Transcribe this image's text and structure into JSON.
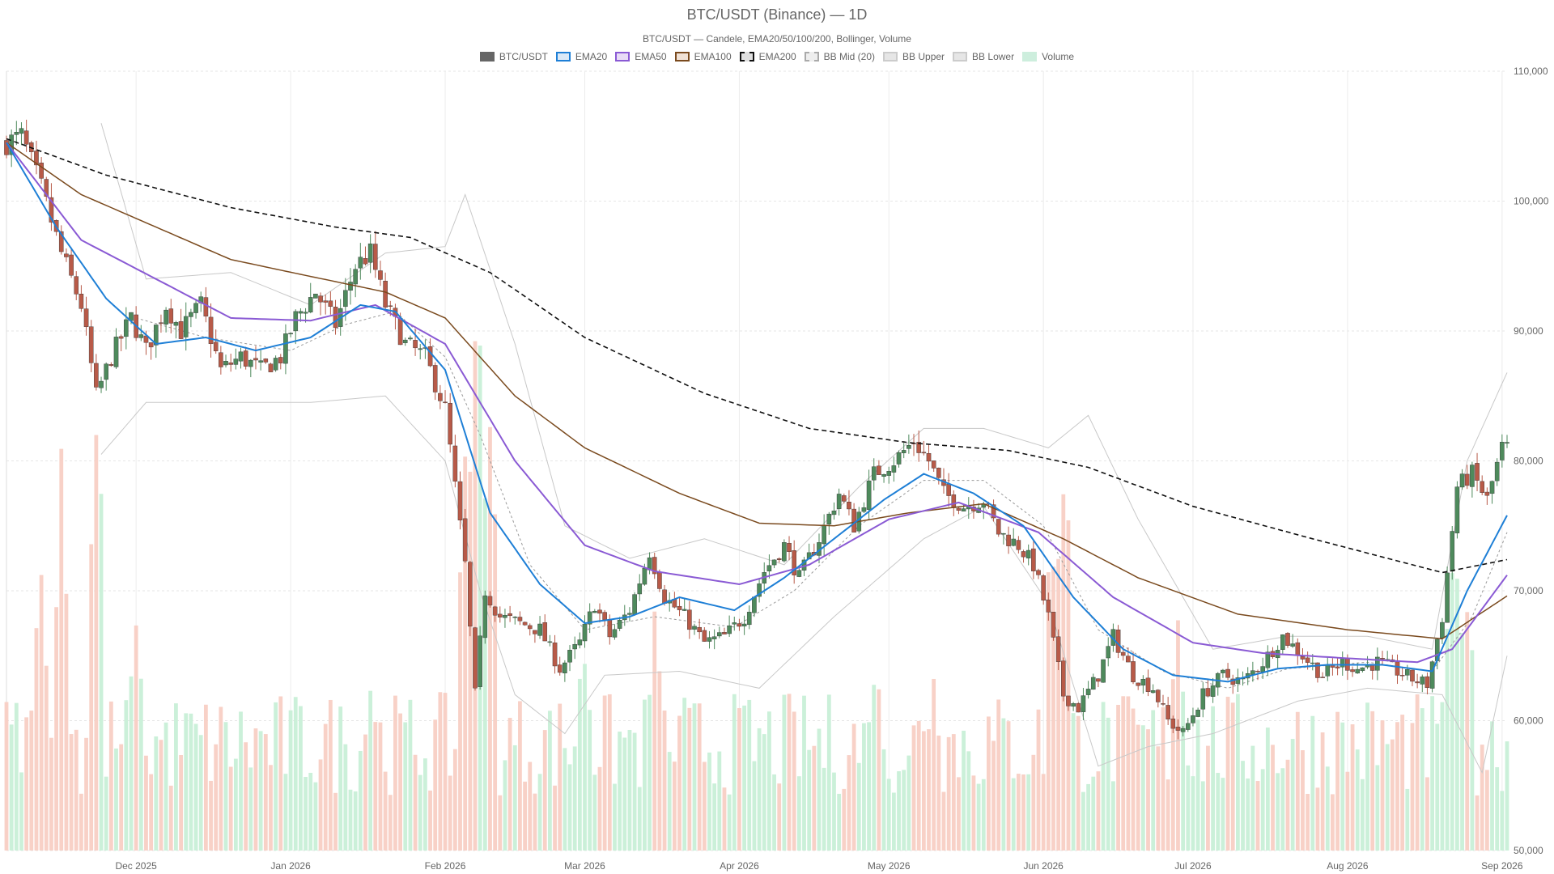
{
  "chart_data": {
    "type": "candlestick",
    "title": "BTC/USDT (Binance) — 1D",
    "subtitle": "BTC/USDT — Candele, EMA20/50/100/200, Bollinger, Volume",
    "legend": [
      {
        "label": "BTC/USDT",
        "kind": "box",
        "fill": "#666666",
        "stroke": "#666666",
        "dashed": false
      },
      {
        "label": "EMA20",
        "kind": "box",
        "fill": "#dbe9f7",
        "stroke": "#1e7fd6",
        "dashed": false
      },
      {
        "label": "EMA50",
        "kind": "box",
        "fill": "#e8dcf6",
        "stroke": "#8a5ad4",
        "dashed": false
      },
      {
        "label": "EMA100",
        "kind": "box",
        "fill": "#f1e2d6",
        "stroke": "#7a4a1e",
        "dashed": false
      },
      {
        "label": "EMA200",
        "kind": "box",
        "fill": "#e0e0e0",
        "stroke": "#111111",
        "dashed": true
      },
      {
        "label": "BB Mid (20)",
        "kind": "box",
        "fill": "#eeeeee",
        "stroke": "#aaaaaa",
        "dashed": true
      },
      {
        "label": "BB Upper",
        "kind": "box",
        "fill": "#e6e6e6",
        "stroke": "#cccccc",
        "dashed": false
      },
      {
        "label": "BB Lower",
        "kind": "box",
        "fill": "#e6e6e6",
        "stroke": "#cccccc",
        "dashed": false
      },
      {
        "label": "Volume",
        "kind": "box",
        "fill": "#cdeedd",
        "stroke": "#cdeedd",
        "dashed": false
      }
    ],
    "x_range": [
      "2025-11-05",
      "2026-09-02"
    ],
    "x_ticks": [
      "Dec 2025",
      "Jan 2026",
      "Feb 2026",
      "Mar 2026",
      "Apr 2026",
      "May 2026",
      "Jun 2026",
      "Jul 2026",
      "Aug 2026",
      "Sep 2026"
    ],
    "x_tick_dates": [
      "2025-12-01",
      "2026-01-01",
      "2026-02-01",
      "2026-03-01",
      "2026-04-01",
      "2026-05-01",
      "2026-06-01",
      "2026-07-01",
      "2026-08-01",
      "2026-09-01"
    ],
    "y_range": [
      50000,
      110000
    ],
    "y_ticks": [
      "110,000",
      "100,000",
      "90,000",
      "80,000",
      "70,000",
      "60,000",
      "50,000"
    ],
    "y_tick_values": [
      110000,
      100000,
      90000,
      80000,
      70000,
      60000,
      50000
    ],
    "y_axis_side": "right",
    "grid": true,
    "colors": {
      "up": "#4e8a5c",
      "down": "#b85a48",
      "vol_up": "#c8efd7",
      "vol_down": "#f8cfc4",
      "ema20": "#1e7fd6",
      "ema50": "#8a5ad4",
      "ema100": "#7a4a1e",
      "ema200": "#111111",
      "bb": "#c8c8c8",
      "bb_mid": "#999999"
    },
    "price_keypoints": [
      [
        "2025-11-05",
        104500
      ],
      [
        "2025-11-08",
        105000
      ],
      [
        "2025-11-12",
        101000
      ],
      [
        "2025-11-16",
        96000
      ],
      [
        "2025-11-20",
        92000
      ],
      [
        "2025-11-23",
        85000
      ],
      [
        "2025-11-26",
        88000
      ],
      [
        "2025-11-30",
        91000
      ],
      [
        "2025-12-03",
        88500
      ],
      [
        "2025-12-07",
        92000
      ],
      [
        "2025-12-10",
        90000
      ],
      [
        "2025-12-14",
        92000
      ],
      [
        "2025-12-18",
        87000
      ],
      [
        "2025-12-22",
        88000
      ],
      [
        "2025-12-26",
        87000
      ],
      [
        "2025-12-30",
        88000
      ],
      [
        "2026-01-02",
        91000
      ],
      [
        "2026-01-06",
        93000
      ],
      [
        "2026-01-10",
        90500
      ],
      [
        "2026-01-14",
        95000
      ],
      [
        "2026-01-17",
        96000
      ],
      [
        "2026-01-20",
        92000
      ],
      [
        "2026-01-24",
        89000
      ],
      [
        "2026-01-28",
        88000
      ],
      [
        "2026-02-01",
        84000
      ],
      [
        "2026-02-03",
        78000
      ],
      [
        "2026-02-05",
        72000
      ],
      [
        "2026-02-07",
        62000
      ],
      [
        "2026-02-09",
        70000
      ],
      [
        "2026-02-12",
        68000
      ],
      [
        "2026-02-16",
        67500
      ],
      [
        "2026-02-20",
        67000
      ],
      [
        "2026-02-24",
        64000
      ],
      [
        "2026-02-28",
        66000
      ],
      [
        "2026-03-03",
        69000
      ],
      [
        "2026-03-06",
        66500
      ],
      [
        "2026-03-10",
        68500
      ],
      [
        "2026-03-14",
        73000
      ],
      [
        "2026-03-17",
        69500
      ],
      [
        "2026-03-21",
        68000
      ],
      [
        "2026-03-25",
        66000
      ],
      [
        "2026-03-29",
        66500
      ],
      [
        "2026-04-02",
        68000
      ],
      [
        "2026-04-06",
        71500
      ],
      [
        "2026-04-10",
        73500
      ],
      [
        "2026-04-13",
        71000
      ],
      [
        "2026-04-17",
        74000
      ],
      [
        "2026-04-21",
        77500
      ],
      [
        "2026-04-24",
        75000
      ],
      [
        "2026-04-28",
        79000
      ],
      [
        "2026-05-02",
        80000
      ],
      [
        "2026-05-06",
        81500
      ],
      [
        "2026-05-09",
        80000
      ],
      [
        "2026-05-12",
        77500
      ],
      [
        "2026-05-16",
        76500
      ],
      [
        "2026-05-20",
        77000
      ],
      [
        "2026-05-23",
        74500
      ],
      [
        "2026-05-27",
        73500
      ],
      [
        "2026-05-30",
        72000
      ],
      [
        "2026-06-02",
        68000
      ],
      [
        "2026-06-05",
        62000
      ],
      [
        "2026-06-08",
        61000
      ],
      [
        "2026-06-12",
        63500
      ],
      [
        "2026-06-15",
        66500
      ],
      [
        "2026-06-19",
        63500
      ],
      [
        "2026-06-23",
        62500
      ],
      [
        "2026-06-26",
        60000
      ],
      [
        "2026-06-29",
        59000
      ],
      [
        "2026-07-03",
        62000
      ],
      [
        "2026-07-07",
        63500
      ],
      [
        "2026-07-11",
        63000
      ],
      [
        "2026-07-15",
        64500
      ],
      [
        "2026-07-19",
        66500
      ],
      [
        "2026-07-23",
        65000
      ],
      [
        "2026-07-27",
        63500
      ],
      [
        "2026-07-31",
        64500
      ],
      [
        "2026-08-03",
        64000
      ],
      [
        "2026-08-07",
        64500
      ],
      [
        "2026-08-11",
        63800
      ],
      [
        "2026-08-14",
        63200
      ],
      [
        "2026-08-17",
        62800
      ],
      [
        "2026-08-20",
        68000
      ],
      [
        "2026-08-23",
        78000
      ],
      [
        "2026-08-26",
        79000
      ],
      [
        "2026-08-29",
        77000
      ],
      [
        "2026-09-01",
        81000
      ]
    ],
    "ema20_points": [
      [
        "2025-11-05",
        104500
      ],
      [
        "2025-11-15",
        98000
      ],
      [
        "2025-11-25",
        92500
      ],
      [
        "2025-12-05",
        89000
      ],
      [
        "2025-12-15",
        89500
      ],
      [
        "2025-12-25",
        88500
      ],
      [
        "2026-01-05",
        89500
      ],
      [
        "2026-01-15",
        92000
      ],
      [
        "2026-01-22",
        91500
      ],
      [
        "2026-02-01",
        87000
      ],
      [
        "2026-02-10",
        76000
      ],
      [
        "2026-02-20",
        70500
      ],
      [
        "2026-03-01",
        67500
      ],
      [
        "2026-03-10",
        68000
      ],
      [
        "2026-03-20",
        69500
      ],
      [
        "2026-03-31",
        68500
      ],
      [
        "2026-04-10",
        71000
      ],
      [
        "2026-04-20",
        74000
      ],
      [
        "2026-04-30",
        77000
      ],
      [
        "2026-05-08",
        79000
      ],
      [
        "2026-05-18",
        77500
      ],
      [
        "2026-05-28",
        75000
      ],
      [
        "2026-06-07",
        69500
      ],
      [
        "2026-06-17",
        65500
      ],
      [
        "2026-06-27",
        63500
      ],
      [
        "2026-07-08",
        63000
      ],
      [
        "2026-07-18",
        64000
      ],
      [
        "2026-07-28",
        64300
      ],
      [
        "2026-08-08",
        64300
      ],
      [
        "2026-08-18",
        63800
      ],
      [
        "2026-08-25",
        70000
      ],
      [
        "2026-09-02",
        75800
      ]
    ],
    "ema50_points": [
      [
        "2025-11-05",
        104500
      ],
      [
        "2025-11-20",
        97000
      ],
      [
        "2025-12-05",
        94000
      ],
      [
        "2025-12-20",
        91000
      ],
      [
        "2026-01-05",
        90800
      ],
      [
        "2026-01-18",
        92000
      ],
      [
        "2026-02-01",
        89000
      ],
      [
        "2026-02-15",
        80000
      ],
      [
        "2026-03-01",
        73500
      ],
      [
        "2026-03-15",
        71500
      ],
      [
        "2026-04-01",
        70500
      ],
      [
        "2026-04-15",
        72000
      ],
      [
        "2026-05-01",
        75500
      ],
      [
        "2026-05-15",
        76800
      ],
      [
        "2026-05-31",
        74500
      ],
      [
        "2026-06-15",
        69500
      ],
      [
        "2026-07-01",
        66000
      ],
      [
        "2026-07-15",
        65200
      ],
      [
        "2026-08-01",
        64800
      ],
      [
        "2026-08-15",
        64500
      ],
      [
        "2026-08-22",
        65500
      ],
      [
        "2026-09-02",
        71200
      ]
    ],
    "ema100_points": [
      [
        "2025-11-05",
        104500
      ],
      [
        "2025-11-20",
        100500
      ],
      [
        "2025-12-05",
        98000
      ],
      [
        "2025-12-20",
        95500
      ],
      [
        "2026-01-05",
        94200
      ],
      [
        "2026-01-20",
        93000
      ],
      [
        "2026-02-01",
        91000
      ],
      [
        "2026-02-15",
        85000
      ],
      [
        "2026-03-01",
        81000
      ],
      [
        "2026-03-20",
        77500
      ],
      [
        "2026-04-05",
        75200
      ],
      [
        "2026-04-20",
        75000
      ],
      [
        "2026-05-05",
        76000
      ],
      [
        "2026-05-20",
        76700
      ],
      [
        "2026-06-05",
        74000
      ],
      [
        "2026-06-20",
        71000
      ],
      [
        "2026-07-10",
        68200
      ],
      [
        "2026-08-01",
        67000
      ],
      [
        "2026-08-20",
        66300
      ],
      [
        "2026-09-02",
        69600
      ]
    ],
    "ema200_points": [
      [
        "2025-11-05",
        104800
      ],
      [
        "2025-11-25",
        102000
      ],
      [
        "2025-12-20",
        99500
      ],
      [
        "2026-01-10",
        98000
      ],
      [
        "2026-01-25",
        97200
      ],
      [
        "2026-02-10",
        94500
      ],
      [
        "2026-03-01",
        89500
      ],
      [
        "2026-03-25",
        85200
      ],
      [
        "2026-04-15",
        82500
      ],
      [
        "2026-05-05",
        81400
      ],
      [
        "2026-05-25",
        80800
      ],
      [
        "2026-06-10",
        79500
      ],
      [
        "2026-07-01",
        76500
      ],
      [
        "2026-07-25",
        74000
      ],
      [
        "2026-08-20",
        71400
      ],
      [
        "2026-09-02",
        72400
      ]
    ],
    "bb_mid_points": [
      [
        "2025-12-01",
        91000
      ],
      [
        "2025-12-15",
        89500
      ],
      [
        "2026-01-01",
        88500
      ],
      [
        "2026-01-12",
        90500
      ],
      [
        "2026-01-22",
        91500
      ],
      [
        "2026-02-01",
        88000
      ],
      [
        "2026-02-08",
        82000
      ],
      [
        "2026-02-18",
        72000
      ],
      [
        "2026-03-01",
        67000
      ],
      [
        "2026-03-15",
        68000
      ],
      [
        "2026-03-31",
        67200
      ],
      [
        "2026-04-12",
        70000
      ],
      [
        "2026-04-25",
        75000
      ],
      [
        "2026-05-08",
        78500
      ],
      [
        "2026-05-20",
        78500
      ],
      [
        "2026-06-01",
        75000
      ],
      [
        "2026-06-12",
        67000
      ],
      [
        "2026-06-25",
        63800
      ],
      [
        "2026-07-08",
        62500
      ],
      [
        "2026-07-20",
        64000
      ],
      [
        "2026-08-05",
        64500
      ],
      [
        "2026-08-18",
        63800
      ],
      [
        "2026-08-26",
        68000
      ],
      [
        "2026-09-02",
        74500
      ]
    ],
    "bb_upper_points": [
      [
        "2025-11-24",
        106000
      ],
      [
        "2025-12-03",
        94000
      ],
      [
        "2025-12-20",
        94500
      ],
      [
        "2026-01-05",
        92000
      ],
      [
        "2026-01-20",
        96000
      ],
      [
        "2026-02-01",
        96500
      ],
      [
        "2026-02-05",
        100500
      ],
      [
        "2026-02-15",
        89000
      ],
      [
        "2026-02-25",
        75000
      ],
      [
        "2026-03-10",
        72500
      ],
      [
        "2026-03-25",
        74000
      ],
      [
        "2026-04-10",
        72000
      ],
      [
        "2026-04-25",
        78000
      ],
      [
        "2026-05-08",
        82500
      ],
      [
        "2026-05-20",
        82500
      ],
      [
        "2026-06-02",
        81000
      ],
      [
        "2026-06-10",
        83500
      ],
      [
        "2026-06-20",
        75500
      ],
      [
        "2026-07-05",
        65500
      ],
      [
        "2026-07-20",
        66500
      ],
      [
        "2026-08-05",
        66500
      ],
      [
        "2026-08-18",
        65500
      ],
      [
        "2026-08-25",
        80000
      ],
      [
        "2026-09-02",
        86800
      ]
    ],
    "bb_lower_points": [
      [
        "2025-11-24",
        80500
      ],
      [
        "2025-12-03",
        84500
      ],
      [
        "2025-12-20",
        84500
      ],
      [
        "2026-01-05",
        84500
      ],
      [
        "2026-01-20",
        85000
      ],
      [
        "2026-02-01",
        80000
      ],
      [
        "2026-02-08",
        70000
      ],
      [
        "2026-02-15",
        62000
      ],
      [
        "2026-02-25",
        59000
      ],
      [
        "2026-03-05",
        63500
      ],
      [
        "2026-03-20",
        63800
      ],
      [
        "2026-04-05",
        62500
      ],
      [
        "2026-04-20",
        68000
      ],
      [
        "2026-05-08",
        74000
      ],
      [
        "2026-05-20",
        76500
      ],
      [
        "2026-06-02",
        69000
      ],
      [
        "2026-06-12",
        56500
      ],
      [
        "2026-06-22",
        58000
      ],
      [
        "2026-07-05",
        59000
      ],
      [
        "2026-07-22",
        61500
      ],
      [
        "2026-08-05",
        62500
      ],
      [
        "2026-08-20",
        62000
      ],
      [
        "2026-08-28",
        56000
      ],
      [
        "2026-09-02",
        65000
      ]
    ],
    "volume_peaks": [
      [
        "2025-11-12",
        0.4
      ],
      [
        "2025-11-16",
        0.55
      ],
      [
        "2025-11-23",
        0.62
      ],
      [
        "2025-12-01",
        0.3
      ],
      [
        "2026-01-17",
        0.25
      ],
      [
        "2026-02-05",
        0.55
      ],
      [
        "2026-02-07",
        0.85
      ],
      [
        "2026-02-10",
        0.6
      ],
      [
        "2026-03-01",
        0.3
      ],
      [
        "2026-03-15",
        0.32
      ],
      [
        "2026-04-28",
        0.28
      ],
      [
        "2026-05-10",
        0.25
      ],
      [
        "2026-06-03",
        0.5
      ],
      [
        "2026-06-05",
        0.6
      ],
      [
        "2026-06-28",
        0.35
      ],
      [
        "2026-08-22",
        0.45
      ],
      [
        "2026-08-25",
        0.4
      ]
    ]
  }
}
